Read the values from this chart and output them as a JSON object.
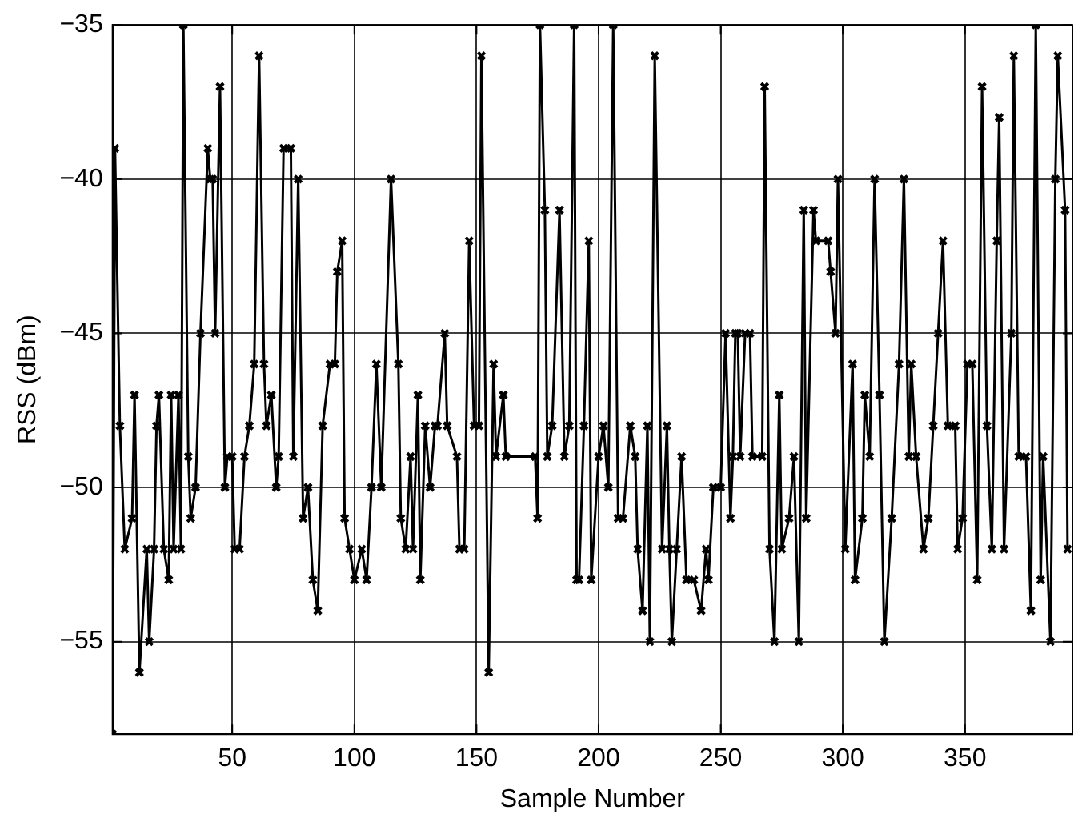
{
  "chart_data": {
    "type": "line",
    "xlabel": "Sample Number",
    "ylabel": "RSS (dBm)",
    "xlim": [
      1,
      394
    ],
    "ylim": [
      -58,
      -35
    ],
    "xticks": [
      50,
      100,
      150,
      200,
      250,
      300,
      350
    ],
    "yticks": [
      {
        "value": -55,
        "label": "−55"
      },
      {
        "value": -50,
        "label": "−50"
      },
      {
        "value": -45,
        "label": "−45"
      },
      {
        "value": -40,
        "label": "−40"
      },
      {
        "value": -35,
        "label": "−35"
      }
    ],
    "grid": true,
    "marker": "cross",
    "line_style": "solid",
    "legend": false,
    "series": [
      {
        "color": "#000000",
        "x": [
          1,
          2,
          4,
          6,
          9,
          10,
          12,
          15,
          16,
          18,
          19,
          20,
          22,
          24,
          25,
          26,
          28,
          29,
          30,
          32,
          33,
          35,
          37,
          40,
          41,
          42,
          43,
          45,
          47,
          48,
          50,
          51,
          53,
          55,
          57,
          59,
          61,
          63,
          64,
          66,
          68,
          69,
          71,
          74,
          75,
          77,
          79,
          81,
          83,
          85,
          87,
          90,
          92,
          93,
          95,
          96,
          98,
          100,
          103,
          105,
          107,
          109,
          111,
          115,
          118,
          119,
          121,
          123,
          124,
          126,
          127,
          129,
          131,
          133,
          134,
          137,
          138,
          142,
          143,
          145,
          147,
          149,
          151,
          152,
          155,
          157,
          158,
          161,
          162,
          174,
          175,
          176,
          178,
          179,
          181,
          184,
          186,
          188,
          190,
          191,
          192,
          194,
          196,
          197,
          200,
          202,
          204,
          206,
          208,
          210,
          213,
          215,
          216,
          218,
          220,
          221,
          223,
          226,
          228,
          229,
          230,
          232,
          234,
          236,
          239,
          242,
          244,
          245,
          247,
          250,
          252,
          254,
          255,
          256,
          257,
          258,
          260,
          262,
          263,
          267,
          268,
          270,
          272,
          274,
          275,
          278,
          280,
          282,
          284,
          285,
          288,
          289,
          294,
          295,
          297,
          298,
          301,
          304,
          305,
          308,
          309,
          311,
          313,
          315,
          317,
          320,
          323,
          325,
          327,
          328,
          330,
          333,
          335,
          337,
          339,
          341,
          343,
          346,
          347,
          349,
          351,
          353,
          355,
          357,
          359,
          361,
          363,
          364,
          366,
          369,
          370,
          372,
          375,
          377,
          379,
          381,
          382,
          385,
          387,
          388,
          391,
          392
        ],
        "values": [
          -58,
          -39,
          -48,
          -52,
          -51,
          -47,
          -56,
          -52,
          -55,
          -52,
          -48,
          -47,
          -52,
          -53,
          -47,
          -52,
          -47,
          -52,
          -35,
          -49,
          -51,
          -50,
          -45,
          -39,
          -40,
          -40,
          -45,
          -37,
          -50,
          -49,
          -49,
          -52,
          -52,
          -49,
          -48,
          -46,
          -36,
          -46,
          -48,
          -47,
          -50,
          -49,
          -39,
          -39,
          -49,
          -40,
          -51,
          -50,
          -53,
          -54,
          -48,
          -46,
          -46,
          -43,
          -42,
          -51,
          -52,
          -53,
          -52,
          -53,
          -50,
          -46,
          -50,
          -40,
          -46,
          -51,
          -52,
          -49,
          -52,
          -47,
          -53,
          -48,
          -50,
          -48,
          -48,
          -45,
          -48,
          -49,
          -52,
          -52,
          -42,
          -48,
          -48,
          -36,
          -56,
          -46,
          -49,
          -47,
          -49,
          -49,
          -51,
          -35,
          -41,
          -49,
          -48,
          -41,
          -49,
          -48,
          -35,
          -53,
          -53,
          -48,
          -42,
          -53,
          -49,
          -48,
          -50,
          -35,
          -51,
          -51,
          -48,
          -49,
          -52,
          -54,
          -48,
          -55,
          -36,
          -52,
          -48,
          -52,
          -55,
          -52,
          -49,
          -53,
          -53,
          -54,
          -52,
          -53,
          -50,
          -50,
          -45,
          -51,
          -49,
          -45,
          -45,
          -49,
          -45,
          -45,
          -49,
          -49,
          -37,
          -52,
          -55,
          -47,
          -52,
          -51,
          -49,
          -55,
          -41,
          -51,
          -41,
          -42,
          -42,
          -43,
          -45,
          -40,
          -52,
          -46,
          -53,
          -51,
          -47,
          -49,
          -40,
          -47,
          -55,
          -51,
          -46,
          -40,
          -49,
          -46,
          -49,
          -52,
          -51,
          -48,
          -45,
          -42,
          -48,
          -48,
          -52,
          -51,
          -46,
          -46,
          -53,
          -37,
          -48,
          -52,
          -42,
          -38,
          -52,
          -45,
          -36,
          -49,
          -49,
          -54,
          -35,
          -53,
          -49,
          -55,
          -40,
          -36,
          -41,
          -52
        ]
      }
    ]
  }
}
